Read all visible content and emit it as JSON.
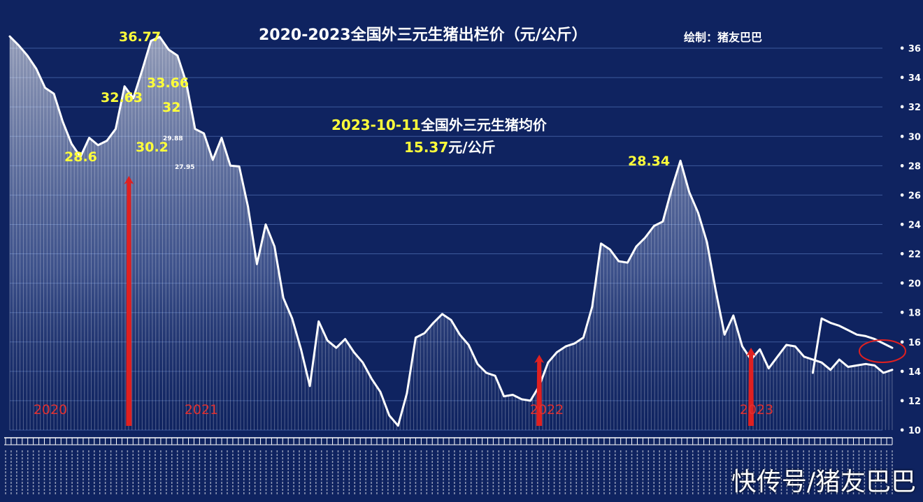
{
  "title": "2020-2023全国外三元生猪出栏价（元/公斤）",
  "credit": "绘制：猪友巴巴",
  "note": {
    "date": "2023-10-11",
    "text": "全国外三元生猪均价",
    "value": "15.37",
    "unit": "元/公斤"
  },
  "watermark": "快传号/猪友巴巴",
  "colors": {
    "background": "#0f2360",
    "line": "#ffffff",
    "annotation": "#ffff3a",
    "arrow": "#e02020",
    "year_label": "#e03030",
    "circle": "#e02020"
  },
  "chart_data": {
    "type": "area",
    "title": "2020-2023全国外三元生猪出栏价（元/公斤）",
    "xlabel": "",
    "ylabel": "",
    "ylim": [
      10,
      37
    ],
    "yticks": [
      10,
      12,
      14,
      16,
      18,
      20,
      22,
      24,
      26,
      28,
      30,
      32,
      34,
      36
    ],
    "grid": true,
    "x_range": [
      0,
      100
    ],
    "series": [
      {
        "x": [
          0,
          1,
          2,
          3,
          4,
          5,
          6,
          7,
          8,
          9,
          10,
          11,
          12,
          13,
          14,
          15,
          16,
          17,
          18,
          19,
          20,
          21,
          22,
          23,
          24,
          25,
          26,
          27,
          28,
          29,
          30,
          31,
          32,
          33,
          34,
          35,
          36,
          37,
          38,
          39,
          40,
          41,
          42,
          43,
          44,
          45,
          46,
          47,
          48,
          49,
          50,
          51,
          52,
          53,
          54,
          55,
          56,
          57,
          58,
          59,
          60,
          61,
          62,
          63,
          64,
          65,
          66,
          67,
          68,
          69,
          70,
          71,
          72,
          73,
          74,
          75,
          76,
          77,
          78,
          79,
          80,
          81,
          82,
          83,
          84,
          85,
          86,
          87,
          88,
          89,
          90,
          91,
          92,
          93,
          94,
          95,
          96,
          97,
          98,
          99,
          100
        ],
        "values": [
          36.8,
          36.2,
          35.5,
          34.6,
          33.3,
          32.9,
          31.0,
          29.5,
          28.6,
          29.9,
          29.4,
          29.7,
          30.5,
          33.4,
          32.6,
          34.5,
          36.5,
          36.77,
          35.9,
          35.5,
          33.66,
          30.5,
          30.2,
          28.4,
          29.9,
          28.0,
          27.95,
          25.2,
          21.3,
          24.0,
          22.5,
          19.0,
          17.6,
          15.5,
          13.0,
          17.4,
          16.1,
          15.6,
          16.2,
          15.3,
          14.6,
          13.5,
          12.6,
          11.0,
          10.3,
          12.5,
          16.3,
          16.6,
          17.3,
          17.9,
          17.5,
          16.5,
          15.8,
          14.5,
          13.9,
          13.7,
          12.3,
          12.4,
          12.1,
          12.0,
          13.0,
          14.6,
          15.3,
          15.7,
          15.9,
          16.3,
          18.4,
          22.7,
          22.3,
          21.5,
          21.4,
          22.5,
          23.1,
          23.9,
          24.2,
          26.4,
          28.34,
          26.2,
          24.8,
          22.8,
          19.5,
          16.5,
          17.8,
          15.7,
          14.8,
          15.5,
          14.2,
          15.0,
          15.8,
          15.7,
          15.0,
          14.8,
          14.6,
          14.1,
          14.8,
          14.3,
          14.4,
          14.5,
          14.4,
          13.9,
          14.1
        ]
      },
      {
        "x": [
          91,
          92,
          93,
          94,
          95,
          96,
          97,
          98,
          99,
          100
        ],
        "values": [
          13.9,
          17.6,
          17.3,
          17.1,
          16.8,
          16.5,
          16.4,
          16.2,
          15.9,
          15.6
        ]
      }
    ],
    "annotations": [
      {
        "text": "36.77",
        "size": "large"
      },
      {
        "text": "33.66",
        "size": "large"
      },
      {
        "text": "32.63",
        "size": "large"
      },
      {
        "text": "32",
        "size": "large"
      },
      {
        "text": "28.6",
        "size": "large"
      },
      {
        "text": "30.2",
        "size": "large"
      },
      {
        "text": "29.88",
        "size": "small"
      },
      {
        "text": "27.95",
        "size": "small"
      },
      {
        "text": "28.34",
        "size": "large"
      }
    ],
    "year_labels": [
      "2020",
      "2021",
      "2022",
      "2023"
    ],
    "arrows_at_x": [
      13.5,
      60,
      84
    ],
    "highlight_circle_x": 99
  }
}
